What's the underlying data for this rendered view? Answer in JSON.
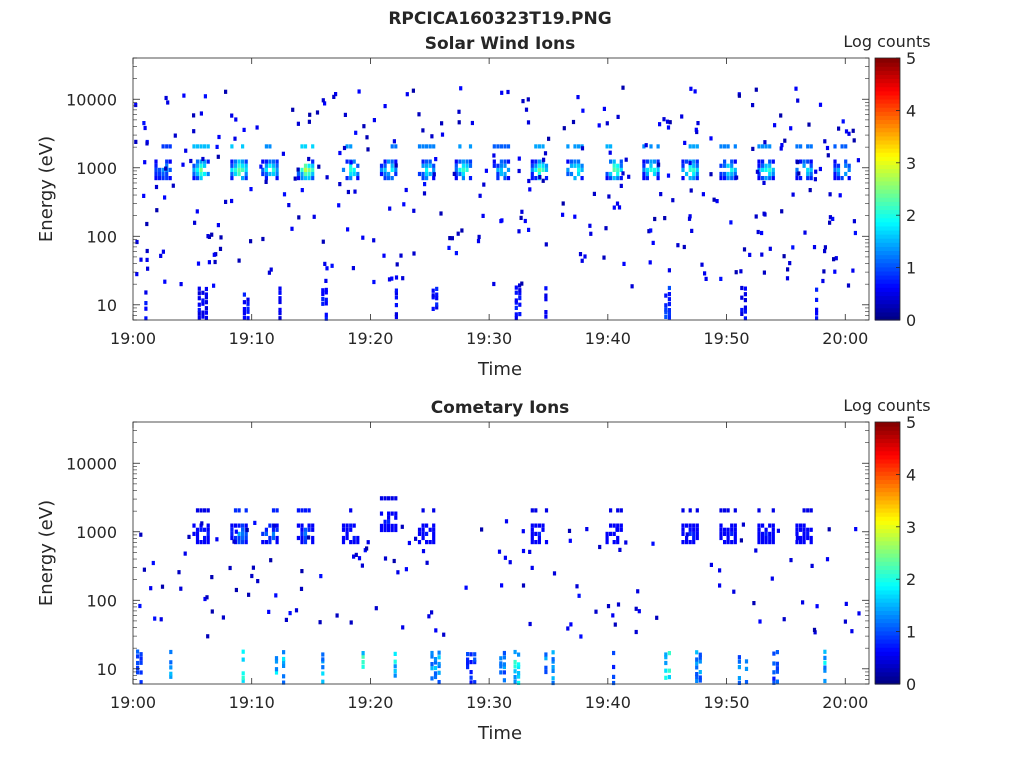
{
  "figure_title": "RPCICA160323T19.PNG",
  "colorbar": {
    "label": "Log counts",
    "ticks": [
      "0",
      "1",
      "2",
      "3",
      "4",
      "5"
    ],
    "range": [
      0,
      5
    ],
    "colormap": "jet"
  },
  "chart_data": [
    {
      "type": "heatmap",
      "title": "Solar Wind Ions",
      "xlabel": "Time",
      "ylabel": "Energy (eV)",
      "x_ticks": [
        "19:00",
        "19:10",
        "19:20",
        "19:30",
        "19:40",
        "19:50",
        "20:00"
      ],
      "x_range_minutes": [
        0,
        62
      ],
      "y_ticks": [
        "10",
        "100",
        "1000",
        "10000"
      ],
      "y_scale": "log",
      "y_range": [
        6,
        40000
      ],
      "colorbar_label": "Log counts",
      "colorbar_range": [
        0,
        5
      ],
      "bursts": [
        {
          "t": 2.5,
          "e": 1000,
          "c": 1.5,
          "s": 1
        },
        {
          "t": 5.7,
          "e": 1000,
          "c": 2.6,
          "s": 1
        },
        {
          "t": 8.9,
          "e": 1000,
          "c": 2.7,
          "s": 1
        },
        {
          "t": 11.5,
          "e": 1000,
          "c": 2.2,
          "s": 1
        },
        {
          "t": 14.5,
          "e": 1000,
          "c": 2.8,
          "s": 1
        },
        {
          "t": 18.3,
          "e": 1000,
          "c": 2.3,
          "s": 1
        },
        {
          "t": 21.5,
          "e": 1000,
          "c": 2.0,
          "s": 1
        },
        {
          "t": 24.7,
          "e": 1000,
          "c": 2.1,
          "s": 1
        },
        {
          "t": 27.8,
          "e": 1000,
          "c": 2.3,
          "s": 1
        },
        {
          "t": 31.0,
          "e": 1000,
          "c": 1.8,
          "s": 1
        },
        {
          "t": 34.2,
          "e": 1000,
          "c": 2.4,
          "s": 1
        },
        {
          "t": 37.2,
          "e": 1000,
          "c": 2.3,
          "s": 1
        },
        {
          "t": 40.5,
          "e": 1000,
          "c": 2.5,
          "s": 1
        },
        {
          "t": 43.6,
          "e": 1000,
          "c": 2.2,
          "s": 1
        },
        {
          "t": 46.9,
          "e": 1000,
          "c": 2.4,
          "s": 1
        },
        {
          "t": 50.1,
          "e": 1000,
          "c": 2.1,
          "s": 1
        },
        {
          "t": 53.3,
          "e": 1000,
          "c": 2.2,
          "s": 1
        },
        {
          "t": 56.5,
          "e": 1000,
          "c": 2.0,
          "s": 1
        },
        {
          "t": 59.7,
          "e": 1000,
          "c": 1.8,
          "s": 1
        },
        {
          "t": 1.0,
          "e": 8,
          "c": 0.7,
          "s": 0
        },
        {
          "t": 5.8,
          "e": 9,
          "c": 0.6,
          "s": 0
        },
        {
          "t": 9.6,
          "e": 9,
          "c": 0.7,
          "s": 0
        },
        {
          "t": 12.6,
          "e": 10,
          "c": 0.6,
          "s": 0
        },
        {
          "t": 15.9,
          "e": 13,
          "c": 0.7,
          "s": 0
        },
        {
          "t": 22.4,
          "e": 12,
          "c": 0.6,
          "s": 0
        },
        {
          "t": 25.5,
          "e": 9,
          "c": 0.7,
          "s": 0
        },
        {
          "t": 32.2,
          "e": 15,
          "c": 0.7,
          "s": 0
        },
        {
          "t": 35.0,
          "e": 11,
          "c": 0.7,
          "s": 0
        },
        {
          "t": 44.8,
          "e": 15,
          "c": 0.9,
          "s": 0
        },
        {
          "t": 51.5,
          "e": 13,
          "c": 0.6,
          "s": 0
        },
        {
          "t": 57.8,
          "e": 11,
          "c": 0.7,
          "s": 0
        }
      ]
    },
    {
      "type": "heatmap",
      "title": "Cometary Ions",
      "xlabel": "Time",
      "ylabel": "Energy (eV)",
      "x_ticks": [
        "19:00",
        "19:10",
        "19:20",
        "19:30",
        "19:40",
        "19:50",
        "20:00"
      ],
      "x_range_minutes": [
        0,
        62
      ],
      "y_ticks": [
        "10",
        "100",
        "1000",
        "10000"
      ],
      "y_scale": "log",
      "y_range": [
        6,
        40000
      ],
      "colorbar_label": "Log counts",
      "colorbar_range": [
        0,
        5
      ],
      "bursts": [
        {
          "t": 5.7,
          "e": 1000,
          "c": 0.8,
          "s": 1
        },
        {
          "t": 8.9,
          "e": 1000,
          "c": 1.4,
          "s": 1
        },
        {
          "t": 11.5,
          "e": 1000,
          "c": 1.3,
          "s": 1
        },
        {
          "t": 14.5,
          "e": 1000,
          "c": 1.2,
          "s": 1
        },
        {
          "t": 18.3,
          "e": 1000,
          "c": 0.9,
          "s": 1
        },
        {
          "t": 21.5,
          "e": 1500,
          "c": 0.8,
          "s": 1
        },
        {
          "t": 24.7,
          "e": 1000,
          "c": 0.7,
          "s": 1
        },
        {
          "t": 34.2,
          "e": 1000,
          "c": 0.7,
          "s": 1
        },
        {
          "t": 40.5,
          "e": 1000,
          "c": 0.8,
          "s": 1
        },
        {
          "t": 46.9,
          "e": 1000,
          "c": 0.8,
          "s": 1
        },
        {
          "t": 50.1,
          "e": 1000,
          "c": 0.7,
          "s": 1
        },
        {
          "t": 53.3,
          "e": 1000,
          "c": 0.7,
          "s": 1
        },
        {
          "t": 56.5,
          "e": 1000,
          "c": 0.7,
          "s": 1
        },
        {
          "t": 0.3,
          "e": 16,
          "c": 1.0,
          "s": 0
        },
        {
          "t": 2.8,
          "e": 12,
          "c": 1.5,
          "s": 0
        },
        {
          "t": 9.2,
          "e": 14,
          "c": 1.8,
          "s": 0
        },
        {
          "t": 12.3,
          "e": 14,
          "c": 1.6,
          "s": 0
        },
        {
          "t": 15.6,
          "e": 13,
          "c": 1.5,
          "s": 0
        },
        {
          "t": 19.0,
          "e": 12,
          "c": 1.9,
          "s": 0
        },
        {
          "t": 22.3,
          "e": 18,
          "c": 1.7,
          "s": 0
        },
        {
          "t": 25.4,
          "e": 13,
          "c": 1.4,
          "s": 0
        },
        {
          "t": 28.4,
          "e": 12,
          "c": 0.9,
          "s": 0
        },
        {
          "t": 31.2,
          "e": 14,
          "c": 1.3,
          "s": 0
        },
        {
          "t": 32.1,
          "e": 16,
          "c": 1.8,
          "s": 0
        },
        {
          "t": 35.0,
          "e": 14,
          "c": 1.3,
          "s": 0
        },
        {
          "t": 40.4,
          "e": 14,
          "c": 1.0,
          "s": 0
        },
        {
          "t": 44.8,
          "e": 18,
          "c": 1.8,
          "s": 0
        },
        {
          "t": 47.7,
          "e": 14,
          "c": 1.3,
          "s": 0
        },
        {
          "t": 51.3,
          "e": 13,
          "c": 1.2,
          "s": 0
        },
        {
          "t": 54.2,
          "e": 15,
          "c": 1.0,
          "s": 0
        },
        {
          "t": 57.9,
          "e": 14,
          "c": 1.6,
          "s": 0
        },
        {
          "t": 60.8,
          "e": 12,
          "c": 1.0,
          "s": 0
        }
      ]
    }
  ]
}
